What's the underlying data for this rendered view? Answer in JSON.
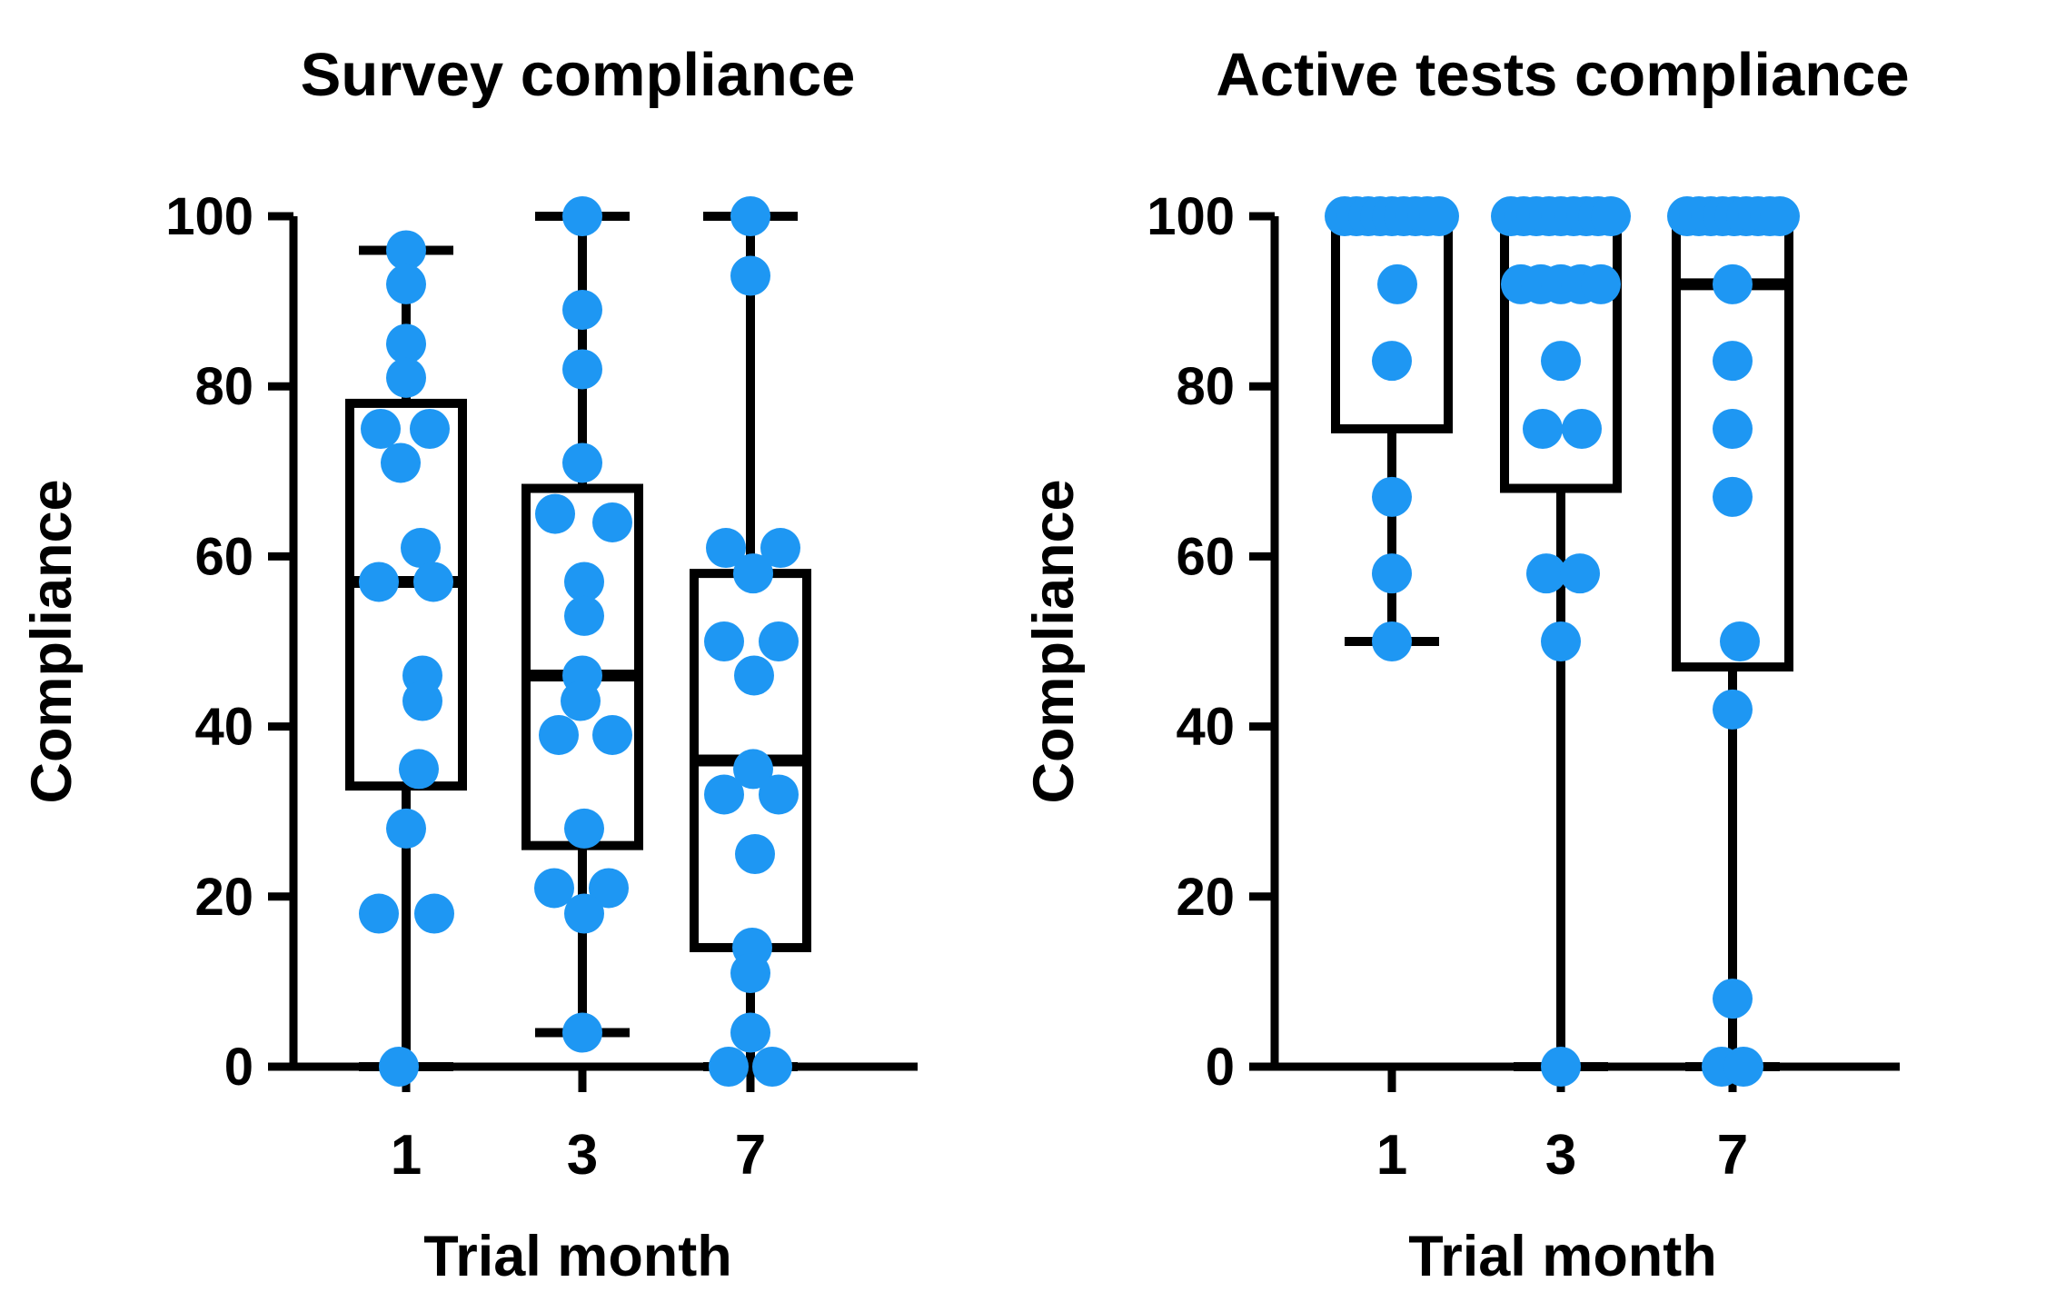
{
  "figure": {
    "background": "#ffffff",
    "dot_color": "#1e97f3",
    "line_color": "#000000"
  },
  "chart_data": [
    {
      "type": "box-scatter",
      "title": "Survey compliance",
      "xlabel": "Trial month",
      "ylabel": "Compliance",
      "categories": [
        "1",
        "3",
        "7"
      ],
      "ylim": [
        0,
        100
      ],
      "yticks": [
        0,
        20,
        40,
        60,
        80,
        100
      ],
      "grid": false,
      "legend": "none",
      "series": [
        {
          "category": "1",
          "box": {
            "min": 0,
            "q1": 33,
            "median": 57,
            "q3": 78,
            "max": 96
          },
          "points": [
            {
              "v": 96,
              "dx": 0
            },
            {
              "v": 92,
              "dx": 0
            },
            {
              "v": 85,
              "dx": 0
            },
            {
              "v": 81,
              "dx": 0
            },
            {
              "v": 75,
              "dx": -28
            },
            {
              "v": 75,
              "dx": 26
            },
            {
              "v": 71,
              "dx": -6
            },
            {
              "v": 61,
              "dx": 16
            },
            {
              "v": 57,
              "dx": -30
            },
            {
              "v": 57,
              "dx": 30
            },
            {
              "v": 46,
              "dx": 18
            },
            {
              "v": 43,
              "dx": 18
            },
            {
              "v": 35,
              "dx": 14
            },
            {
              "v": 28,
              "dx": 0
            },
            {
              "v": 18,
              "dx": -30
            },
            {
              "v": 18,
              "dx": 31
            },
            {
              "v": 0,
              "dx": -8
            }
          ]
        },
        {
          "category": "3",
          "box": {
            "min": 4,
            "q1": 26,
            "median": 46,
            "q3": 68,
            "max": 100
          },
          "points": [
            {
              "v": 100,
              "dx": 0
            },
            {
              "v": 89,
              "dx": 0
            },
            {
              "v": 82,
              "dx": 0
            },
            {
              "v": 71,
              "dx": 0
            },
            {
              "v": 65,
              "dx": -30
            },
            {
              "v": 64,
              "dx": 33
            },
            {
              "v": 57,
              "dx": 2
            },
            {
              "v": 53,
              "dx": 2
            },
            {
              "v": 46,
              "dx": 0
            },
            {
              "v": 43,
              "dx": -2
            },
            {
              "v": 39,
              "dx": -26
            },
            {
              "v": 39,
              "dx": 33
            },
            {
              "v": 28,
              "dx": 2
            },
            {
              "v": 21,
              "dx": -31
            },
            {
              "v": 21,
              "dx": 29
            },
            {
              "v": 18,
              "dx": 2
            },
            {
              "v": 4,
              "dx": 0
            }
          ]
        },
        {
          "category": "7",
          "box": {
            "min": 0,
            "q1": 14,
            "median": 36,
            "q3": 58,
            "max": 100
          },
          "points": [
            {
              "v": 100,
              "dx": 0
            },
            {
              "v": 93,
              "dx": 0
            },
            {
              "v": 61,
              "dx": -27
            },
            {
              "v": 61,
              "dx": 33
            },
            {
              "v": 58,
              "dx": 3
            },
            {
              "v": 50,
              "dx": -29
            },
            {
              "v": 50,
              "dx": 31
            },
            {
              "v": 46,
              "dx": 4
            },
            {
              "v": 35,
              "dx": 3
            },
            {
              "v": 32,
              "dx": -29
            },
            {
              "v": 32,
              "dx": 31
            },
            {
              "v": 25,
              "dx": 5
            },
            {
              "v": 14,
              "dx": 2
            },
            {
              "v": 11,
              "dx": 0
            },
            {
              "v": 4,
              "dx": 0
            },
            {
              "v": 0,
              "dx": -24
            },
            {
              "v": 0,
              "dx": 24
            }
          ]
        }
      ]
    },
    {
      "type": "box-scatter",
      "title": "Active tests compliance",
      "xlabel": "Trial month",
      "ylabel": "Compliance",
      "categories": [
        "1",
        "3",
        "7"
      ],
      "ylim": [
        0,
        100
      ],
      "yticks": [
        0,
        20,
        40,
        60,
        80,
        100
      ],
      "grid": false,
      "legend": "none",
      "series": [
        {
          "category": "1",
          "box": {
            "min": 50,
            "q1": 75,
            "median": 100,
            "q3": 100,
            "max": 100
          },
          "points": [
            {
              "v": 100,
              "dx": -52
            },
            {
              "v": 100,
              "dx": -39
            },
            {
              "v": 100,
              "dx": -26
            },
            {
              "v": 100,
              "dx": -13
            },
            {
              "v": 100,
              "dx": 0
            },
            {
              "v": 100,
              "dx": 13
            },
            {
              "v": 100,
              "dx": 26
            },
            {
              "v": 100,
              "dx": 39
            },
            {
              "v": 100,
              "dx": 52
            },
            {
              "v": 92,
              "dx": 6
            },
            {
              "v": 83,
              "dx": 0
            },
            {
              "v": 67,
              "dx": 0
            },
            {
              "v": 58,
              "dx": 0
            },
            {
              "v": 50,
              "dx": 0
            }
          ]
        },
        {
          "category": "3",
          "box": {
            "min": 0,
            "q1": 68,
            "median": 92,
            "q3": 100,
            "max": 100
          },
          "points": [
            {
              "v": 100,
              "dx": -55
            },
            {
              "v": 100,
              "dx": -41
            },
            {
              "v": 100,
              "dx": -27
            },
            {
              "v": 100,
              "dx": -13
            },
            {
              "v": 100,
              "dx": 0
            },
            {
              "v": 100,
              "dx": 14
            },
            {
              "v": 100,
              "dx": 28
            },
            {
              "v": 100,
              "dx": 41
            },
            {
              "v": 100,
              "dx": 55
            },
            {
              "v": 92,
              "dx": -44
            },
            {
              "v": 92,
              "dx": -22
            },
            {
              "v": 92,
              "dx": 0
            },
            {
              "v": 92,
              "dx": 22
            },
            {
              "v": 92,
              "dx": 44
            },
            {
              "v": 83,
              "dx": 0
            },
            {
              "v": 75,
              "dx": -20
            },
            {
              "v": 75,
              "dx": 23
            },
            {
              "v": 58,
              "dx": -16
            },
            {
              "v": 58,
              "dx": 21
            },
            {
              "v": 50,
              "dx": 0
            },
            {
              "v": 0,
              "dx": 0
            }
          ]
        },
        {
          "category": "7",
          "box": {
            "min": 0,
            "q1": 47,
            "median": 92,
            "q3": 100,
            "max": 100
          },
          "points": [
            {
              "v": 100,
              "dx": -50
            },
            {
              "v": 100,
              "dx": -37
            },
            {
              "v": 100,
              "dx": -24
            },
            {
              "v": 100,
              "dx": -11
            },
            {
              "v": 100,
              "dx": 2
            },
            {
              "v": 100,
              "dx": 15
            },
            {
              "v": 100,
              "dx": 28
            },
            {
              "v": 100,
              "dx": 41
            },
            {
              "v": 100,
              "dx": 52
            },
            {
              "v": 92,
              "dx": 0
            },
            {
              "v": 83,
              "dx": 0
            },
            {
              "v": 75,
              "dx": 0
            },
            {
              "v": 67,
              "dx": 0
            },
            {
              "v": 50,
              "dx": 8
            },
            {
              "v": 42,
              "dx": 0
            },
            {
              "v": 8,
              "dx": 0
            },
            {
              "v": 0,
              "dx": -12
            },
            {
              "v": 0,
              "dx": 12
            }
          ]
        }
      ]
    }
  ]
}
